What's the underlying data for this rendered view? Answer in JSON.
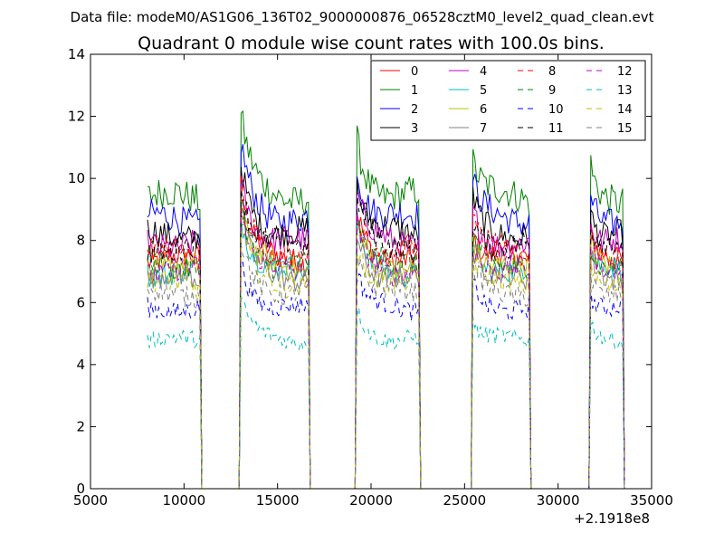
{
  "header": {
    "data_file": "Data file: modeM0/AS1G06_136T02_9000000876_06528cztM0_level2_quad_clean.evt"
  },
  "chart_data": {
    "type": "line",
    "title": "Quadrant 0 module wise count rates with 100.0s bins.",
    "xlabel": "",
    "ylabel": "",
    "xlim": [
      5000,
      35000
    ],
    "ylim": [
      0,
      14
    ],
    "x_offset_label": "+2.1918e8",
    "xticks": [
      5000,
      10000,
      15000,
      20000,
      25000,
      30000,
      35000
    ],
    "xtick_labels": [
      "5000",
      "10000",
      "15000",
      "20000",
      "25000",
      "30000",
      "35000"
    ],
    "yticks": [
      0,
      2,
      4,
      6,
      8,
      10,
      12,
      14
    ],
    "ytick_labels": [
      "0",
      "2",
      "4",
      "6",
      "8",
      "10",
      "12",
      "14"
    ],
    "grid": false,
    "legend_position": "top-right",
    "bin_seconds": 100,
    "on_intervals": [
      [
        8050,
        10850
      ],
      [
        13000,
        16650
      ],
      [
        19250,
        22550
      ],
      [
        25400,
        28450
      ],
      [
        31700,
        33450
      ]
    ],
    "spikes_at_start": [
      0.0,
      2.3,
      1.6,
      1.1,
      0.9
    ],
    "series": [
      {
        "name": "0",
        "color": "#ff0000",
        "dash": "solid",
        "level": 7.4
      },
      {
        "name": "1",
        "color": "#008000",
        "dash": "solid",
        "level": 9.4
      },
      {
        "name": "2",
        "color": "#0000ff",
        "dash": "solid",
        "level": 8.7
      },
      {
        "name": "3",
        "color": "#000000",
        "dash": "solid",
        "level": 8.2
      },
      {
        "name": "4",
        "color": "#bf00bf",
        "dash": "solid",
        "level": 7.9
      },
      {
        "name": "5",
        "color": "#00bfbf",
        "dash": "solid",
        "level": 7.0
      },
      {
        "name": "6",
        "color": "#bfbf00",
        "dash": "solid",
        "level": 7.1
      },
      {
        "name": "7",
        "color": "#808080",
        "dash": "solid",
        "level": 6.8
      },
      {
        "name": "8",
        "color": "#ff0000",
        "dash": "dashed",
        "level": 7.6
      },
      {
        "name": "9",
        "color": "#008000",
        "dash": "dashed",
        "level": 7.2
      },
      {
        "name": "10",
        "color": "#0000ff",
        "dash": "dashed",
        "level": 5.8
      },
      {
        "name": "11",
        "color": "#000000",
        "dash": "dashed",
        "level": 7.8
      },
      {
        "name": "12",
        "color": "#bf00bf",
        "dash": "dashed",
        "level": 7.0
      },
      {
        "name": "13",
        "color": "#00bfbf",
        "dash": "dashed",
        "level": 4.8
      },
      {
        "name": "14",
        "color": "#bfbf00",
        "dash": "dashed",
        "level": 6.6
      },
      {
        "name": "15",
        "color": "#808080",
        "dash": "dashed",
        "level": 6.3
      }
    ]
  }
}
